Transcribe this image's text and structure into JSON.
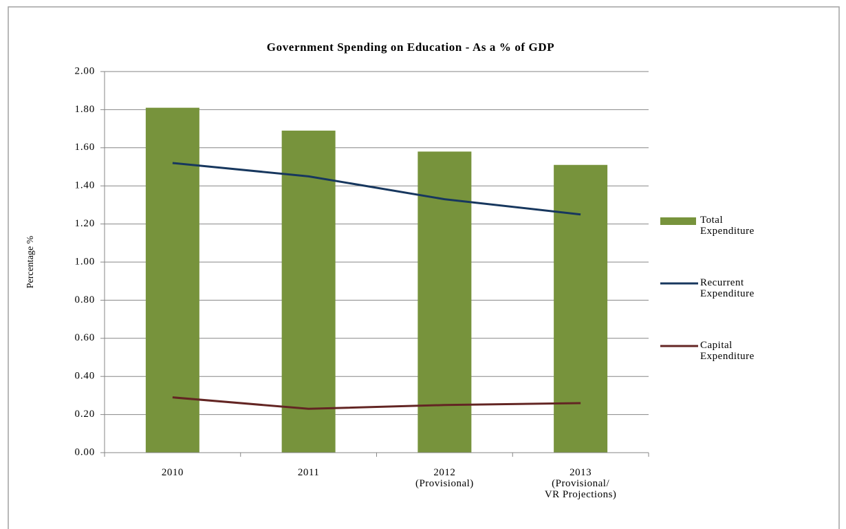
{
  "chart_data": {
    "type": "bar",
    "title": "Government Spending on Education - As a % of GDP",
    "y_label": "Percentage %",
    "categories": [
      "2010",
      "2011",
      "2012\n(Provisional)",
      "2013\n(Provisional/\nVR Projections)"
    ],
    "series": [
      {
        "name": "Total\nExpenditure",
        "type": "bar",
        "color": "#77933c",
        "values": [
          1.81,
          1.69,
          1.58,
          1.51
        ]
      },
      {
        "name": "Recurrent\nExpenditure",
        "type": "line",
        "color": "#17375e",
        "values": [
          1.52,
          1.45,
          1.33,
          1.25
        ]
      },
      {
        "name": "Capital\nExpenditure",
        "type": "line",
        "color": "#632523",
        "values": [
          0.29,
          0.23,
          0.25,
          0.26
        ]
      }
    ],
    "ylim": [
      0,
      2
    ],
    "yticks": [
      {
        "value": 0,
        "label": "0.00"
      },
      {
        "value": 0.2,
        "label": "0.20"
      },
      {
        "value": 0.4,
        "label": "0.40"
      },
      {
        "value": 0.6,
        "label": "0.60"
      },
      {
        "value": 0.8,
        "label": "0.80"
      },
      {
        "value": 1,
        "label": "1.00"
      },
      {
        "value": 1.2,
        "label": "1.20"
      },
      {
        "value": 1.4,
        "label": "1.40"
      },
      {
        "value": 1.6,
        "label": "1.60"
      },
      {
        "value": 1.8,
        "label": "1.80"
      },
      {
        "value": 2,
        "label": "2.00"
      }
    ],
    "grid": true,
    "legend": "right"
  }
}
